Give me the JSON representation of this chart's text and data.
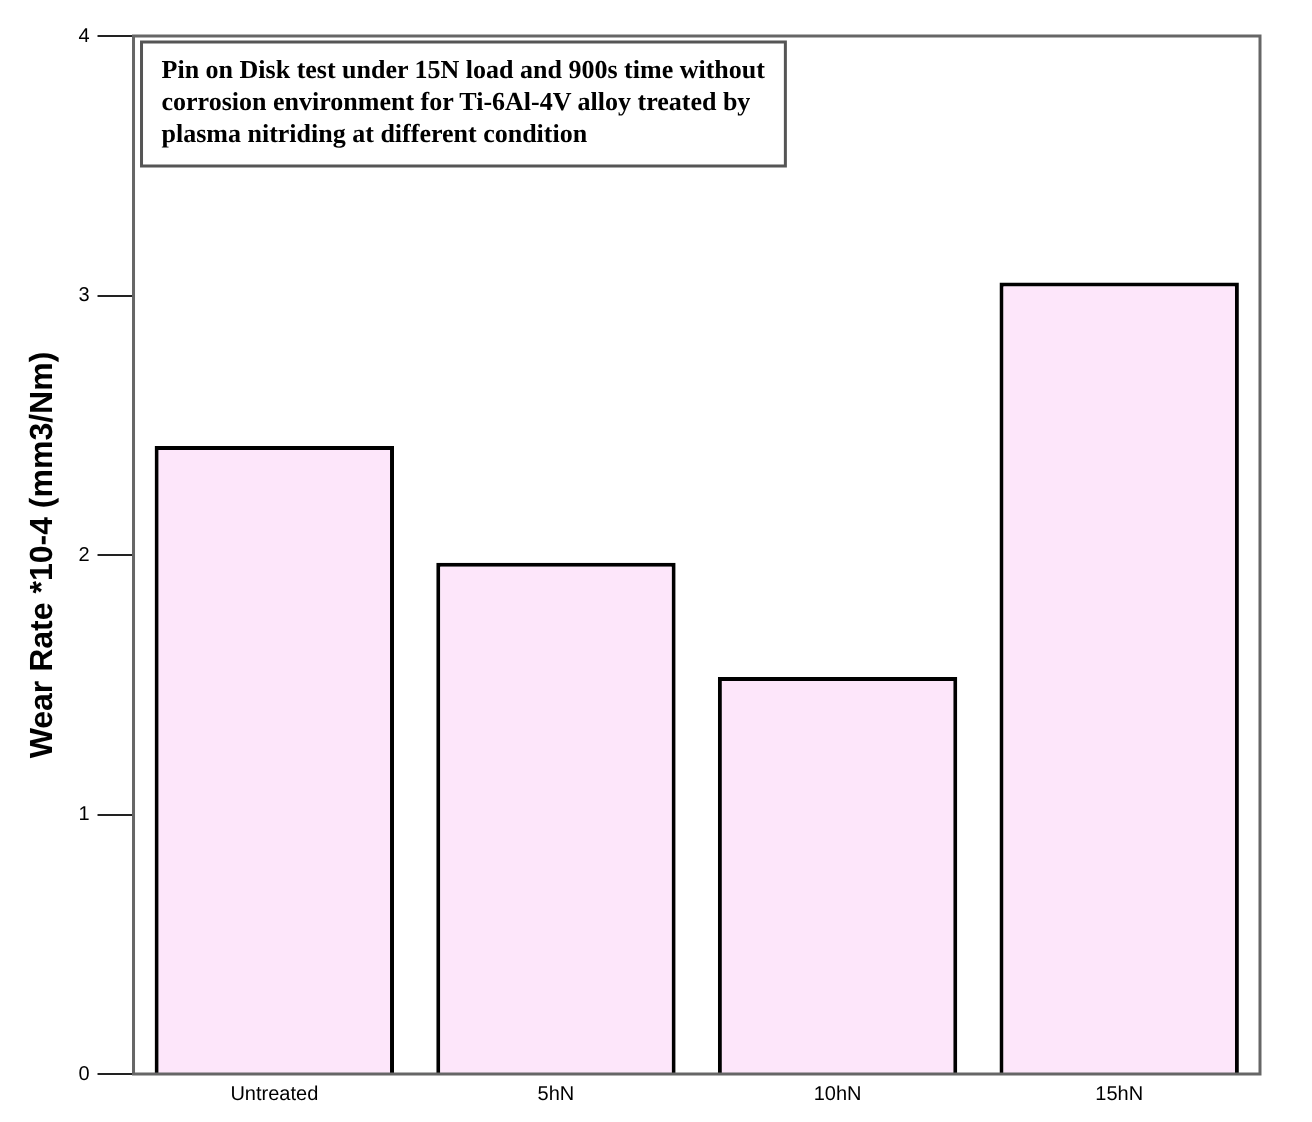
{
  "chart_data": {
    "type": "bar",
    "title": "Pin on Disk test under 15N load and 900s time without corrosion environment for Ti-6Al-4V alloy treated by plasma nitriding at different condition",
    "ylabel": "Wear Rate *10-4 (mm3/Nm)",
    "categories": [
      "Untreated",
      "5hN",
      "10hN",
      "15hN"
    ],
    "values": [
      2.42,
      1.97,
      1.53,
      3.05
    ],
    "color": "#fde6fa",
    "ylim": [
      0,
      4
    ],
    "yticks": [
      0,
      1,
      2,
      3,
      4
    ],
    "grid": false,
    "legend": false
  }
}
